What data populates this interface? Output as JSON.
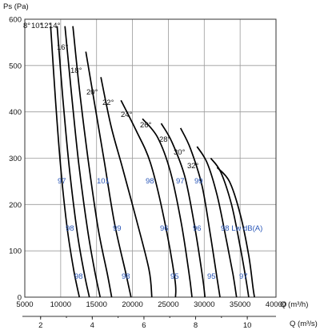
{
  "chart_data": {
    "type": "line",
    "title": "",
    "ylabel": "Ps (Pa)",
    "xlabel_primary": "Q (m³/h)",
    "xlabel_secondary": "Q (m³/s)",
    "xlim": [
      5000,
      40000
    ],
    "ylim": [
      0,
      600
    ],
    "x_ticks": [
      5000,
      10000,
      15000,
      20000,
      25000,
      30000,
      35000,
      40000
    ],
    "x_tick_labels": [
      "5000",
      "10000",
      "15000",
      "20000",
      "25000",
      "30000",
      "35000",
      "40000"
    ],
    "y_ticks": [
      0,
      100,
      200,
      300,
      400,
      500,
      600
    ],
    "y_tick_labels": [
      "0",
      "100",
      "200",
      "300",
      "400",
      "500",
      "600"
    ],
    "secondary_x_ticks": [
      2,
      4,
      6,
      8,
      10
    ],
    "secondary_x_tick_labels": [
      "2",
      "4",
      "6",
      "8",
      "10"
    ],
    "grid": true,
    "series": [
      {
        "name": "8°",
        "points": [
          [
            8600,
            585
          ],
          [
            9300,
            420
          ],
          [
            10000,
            280
          ],
          [
            10900,
            150
          ],
          [
            11800,
            60
          ],
          [
            12600,
            0
          ]
        ]
      },
      {
        "name": "10°",
        "points": [
          [
            9500,
            585
          ],
          [
            10300,
            430
          ],
          [
            11200,
            280
          ],
          [
            12300,
            140
          ],
          [
            13300,
            50
          ],
          [
            14000,
            0
          ]
        ]
      },
      {
        "name": "12°",
        "points": [
          [
            10600,
            585
          ],
          [
            11500,
            440
          ],
          [
            12500,
            290
          ],
          [
            13700,
            150
          ],
          [
            14700,
            60
          ],
          [
            15500,
            0
          ]
        ]
      },
      {
        "name": "14°",
        "points": [
          [
            11700,
            585
          ],
          [
            12600,
            450
          ],
          [
            13800,
            300
          ],
          [
            15200,
            150
          ],
          [
            16500,
            50
          ],
          [
            17100,
            0
          ]
        ]
      },
      {
        "name": "16°",
        "points": [
          [
            13500,
            530
          ],
          [
            14700,
            420
          ],
          [
            16000,
            300
          ],
          [
            17500,
            160
          ],
          [
            19100,
            50
          ],
          [
            19800,
            0
          ]
        ]
      },
      {
        "name": "18°",
        "points": [
          [
            15600,
            475
          ],
          [
            17000,
            370
          ],
          [
            18600,
            280
          ],
          [
            20500,
            170
          ],
          [
            22300,
            60
          ],
          [
            22700,
            0
          ]
        ]
      },
      {
        "name": "20°",
        "points": [
          [
            18400,
            425
          ],
          [
            20500,
            360
          ],
          [
            22500,
            290
          ],
          [
            24400,
            170
          ],
          [
            25900,
            40
          ],
          [
            26000,
            0
          ]
        ]
      },
      {
        "name": "22°",
        "points": [
          [
            21400,
            385
          ],
          [
            23500,
            345
          ],
          [
            25300,
            270
          ],
          [
            26800,
            160
          ],
          [
            27900,
            50
          ],
          [
            28300,
            0
          ]
        ]
      },
      {
        "name": "24°",
        "points": [
          [
            24000,
            375
          ],
          [
            25500,
            335
          ],
          [
            27300,
            260
          ],
          [
            28700,
            150
          ],
          [
            29800,
            40
          ],
          [
            30100,
            0
          ]
        ]
      },
      {
        "name": "26°",
        "points": [
          [
            26700,
            365
          ],
          [
            28100,
            320
          ],
          [
            29700,
            240
          ],
          [
            30900,
            130
          ],
          [
            31800,
            40
          ],
          [
            32200,
            0
          ]
        ]
      },
      {
        "name": "28°",
        "points": [
          [
            29000,
            325
          ],
          [
            30400,
            290
          ],
          [
            31800,
            220
          ],
          [
            33000,
            130
          ],
          [
            34000,
            50
          ],
          [
            34500,
            0
          ]
        ]
      },
      {
        "name": "30°",
        "points": [
          [
            30900,
            300
          ],
          [
            32300,
            270
          ],
          [
            33800,
            200
          ],
          [
            35000,
            110
          ],
          [
            35800,
            40
          ],
          [
            36200,
            0
          ]
        ]
      },
      {
        "name": "32°",
        "points": [
          [
            31800,
            280
          ],
          [
            33500,
            250
          ],
          [
            35000,
            180
          ],
          [
            36200,
            90
          ],
          [
            36800,
            20
          ],
          [
            37000,
            0
          ]
        ]
      }
    ],
    "annotations": [
      {
        "text": "8°",
        "color": "#111111"
      },
      {
        "text": "10°",
        "color": "#111111"
      },
      {
        "text": "12°",
        "color": "#111111"
      },
      {
        "text": "14°",
        "color": "#111111"
      },
      {
        "text": "16°",
        "color": "#111111"
      },
      {
        "text": "18°",
        "color": "#111111"
      },
      {
        "text": "20°",
        "color": "#111111"
      },
      {
        "text": "22°",
        "color": "#111111"
      },
      {
        "text": "24°",
        "color": "#111111"
      },
      {
        "text": "26°",
        "color": "#111111"
      },
      {
        "text": "28°",
        "color": "#111111"
      },
      {
        "text": "30°",
        "color": "#111111"
      },
      {
        "text": "32°",
        "color": "#111111"
      },
      {
        "text": "97",
        "color": "#2a57b8"
      },
      {
        "text": "101",
        "color": "#2a57b8"
      },
      {
        "text": "98",
        "color": "#2a57b8"
      },
      {
        "text": "97",
        "color": "#2a57b8"
      },
      {
        "text": "99",
        "color": "#2a57b8"
      },
      {
        "text": "98",
        "color": "#2a57b8"
      },
      {
        "text": "99",
        "color": "#2a57b8"
      },
      {
        "text": "96",
        "color": "#2a57b8"
      },
      {
        "text": "96",
        "color": "#2a57b8"
      },
      {
        "text": "98 Lw dB(A)",
        "color": "#2a57b8"
      },
      {
        "text": "98",
        "color": "#2a57b8"
      },
      {
        "text": "98",
        "color": "#2a57b8"
      },
      {
        "text": "95",
        "color": "#2a57b8"
      },
      {
        "text": "95",
        "color": "#2a57b8"
      },
      {
        "text": "97",
        "color": "#2a57b8"
      }
    ],
    "colors": {
      "line": "#000000",
      "grid": "#9a9a9a",
      "annotation_blue": "#2a57b8"
    }
  }
}
